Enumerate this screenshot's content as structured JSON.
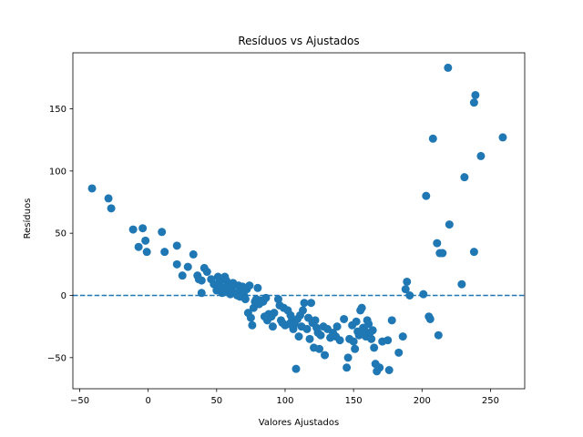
{
  "chart_data": {
    "type": "scatter",
    "title": "Resíduos vs Ajustados",
    "xlabel": "Valores Ajustados",
    "ylabel": "Resíduos",
    "xlim": [
      -55,
      275
    ],
    "ylim": [
      -75,
      195
    ],
    "xticks": [
      -50,
      0,
      50,
      100,
      150,
      200,
      250
    ],
    "yticks": [
      -50,
      0,
      50,
      100,
      150
    ],
    "xtick_labels": [
      "−50",
      "0",
      "50",
      "100",
      "150",
      "200",
      "250"
    ],
    "ytick_labels": [
      "−50",
      "0",
      "50",
      "100",
      "150"
    ],
    "grid": false,
    "point_color": "#1f77b4",
    "reference_line": {
      "y": 0,
      "style": "dashed",
      "color": "#1f77b4"
    },
    "points": [
      {
        "x": -41,
        "y": 86
      },
      {
        "x": -29,
        "y": 78
      },
      {
        "x": -27,
        "y": 70
      },
      {
        "x": -11,
        "y": 53
      },
      {
        "x": -7,
        "y": 39
      },
      {
        "x": -4,
        "y": 54
      },
      {
        "x": -2,
        "y": 44
      },
      {
        "x": -1,
        "y": 35
      },
      {
        "x": 10,
        "y": 51
      },
      {
        "x": 12,
        "y": 35
      },
      {
        "x": 21,
        "y": 40
      },
      {
        "x": 21,
        "y": 25
      },
      {
        "x": 25,
        "y": 16
      },
      {
        "x": 29,
        "y": 23
      },
      {
        "x": 33,
        "y": 33
      },
      {
        "x": 36,
        "y": 16
      },
      {
        "x": 37,
        "y": 13
      },
      {
        "x": 39,
        "y": 12
      },
      {
        "x": 39,
        "y": 2
      },
      {
        "x": 41,
        "y": 22
      },
      {
        "x": 43,
        "y": 19
      },
      {
        "x": 46,
        "y": 13
      },
      {
        "x": 48,
        "y": 9
      },
      {
        "x": 50,
        "y": 4
      },
      {
        "x": 51,
        "y": 15
      },
      {
        "x": 52,
        "y": 11
      },
      {
        "x": 53,
        "y": 7
      },
      {
        "x": 54,
        "y": 2
      },
      {
        "x": 55,
        "y": 5
      },
      {
        "x": 56,
        "y": 15
      },
      {
        "x": 57,
        "y": 12
      },
      {
        "x": 58,
        "y": 8
      },
      {
        "x": 59,
        "y": 3
      },
      {
        "x": 60,
        "y": 1
      },
      {
        "x": 61,
        "y": 6
      },
      {
        "x": 62,
        "y": 10
      },
      {
        "x": 64,
        "y": 2
      },
      {
        "x": 65,
        "y": 0
      },
      {
        "x": 66,
        "y": 8
      },
      {
        "x": 67,
        "y": -1
      },
      {
        "x": 68,
        "y": 4
      },
      {
        "x": 69,
        "y": 7
      },
      {
        "x": 70,
        "y": 0
      },
      {
        "x": 71,
        "y": -3
      },
      {
        "x": 72,
        "y": 5
      },
      {
        "x": 73,
        "y": -14
      },
      {
        "x": 74,
        "y": 8
      },
      {
        "x": 75,
        "y": -18
      },
      {
        "x": 76,
        "y": -24
      },
      {
        "x": 77,
        "y": -10
      },
      {
        "x": 78,
        "y": -5
      },
      {
        "x": 79,
        "y": -3
      },
      {
        "x": 80,
        "y": 6
      },
      {
        "x": 81,
        "y": -7
      },
      {
        "x": 82,
        "y": -4
      },
      {
        "x": 84,
        "y": -5
      },
      {
        "x": 85,
        "y": -17
      },
      {
        "x": 86,
        "y": -2
      },
      {
        "x": 87,
        "y": -20
      },
      {
        "x": 88,
        "y": -15
      },
      {
        "x": 90,
        "y": -17
      },
      {
        "x": 91,
        "y": -25
      },
      {
        "x": 92,
        "y": -14
      },
      {
        "x": 95,
        "y": -3
      },
      {
        "x": 96,
        "y": -8
      },
      {
        "x": 97,
        "y": -20
      },
      {
        "x": 98,
        "y": -22
      },
      {
        "x": 99,
        "y": -10
      },
      {
        "x": 100,
        "y": -24
      },
      {
        "x": 102,
        "y": -12
      },
      {
        "x": 103,
        "y": -23
      },
      {
        "x": 104,
        "y": -16
      },
      {
        "x": 105,
        "y": -20
      },
      {
        "x": 106,
        "y": -27
      },
      {
        "x": 107,
        "y": -23
      },
      {
        "x": 108,
        "y": -59
      },
      {
        "x": 109,
        "y": -19
      },
      {
        "x": 110,
        "y": -33
      },
      {
        "x": 111,
        "y": -16
      },
      {
        "x": 112,
        "y": -25
      },
      {
        "x": 113,
        "y": -12
      },
      {
        "x": 114,
        "y": -6
      },
      {
        "x": 116,
        "y": -27
      },
      {
        "x": 117,
        "y": -18
      },
      {
        "x": 118,
        "y": -35
      },
      {
        "x": 119,
        "y": -6
      },
      {
        "x": 120,
        "y": -22
      },
      {
        "x": 121,
        "y": -42
      },
      {
        "x": 122,
        "y": -20
      },
      {
        "x": 123,
        "y": -26
      },
      {
        "x": 124,
        "y": -30
      },
      {
        "x": 125,
        "y": -43
      },
      {
        "x": 126,
        "y": -32
      },
      {
        "x": 128,
        "y": -25
      },
      {
        "x": 129,
        "y": -48
      },
      {
        "x": 131,
        "y": -27
      },
      {
        "x": 133,
        "y": -34
      },
      {
        "x": 135,
        "y": -30
      },
      {
        "x": 137,
        "y": -33
      },
      {
        "x": 138,
        "y": -25
      },
      {
        "x": 140,
        "y": -36
      },
      {
        "x": 143,
        "y": -19
      },
      {
        "x": 145,
        "y": -58
      },
      {
        "x": 146,
        "y": -50
      },
      {
        "x": 147,
        "y": -35
      },
      {
        "x": 149,
        "y": -24
      },
      {
        "x": 150,
        "y": -37
      },
      {
        "x": 151,
        "y": -43
      },
      {
        "x": 152,
        "y": -21
      },
      {
        "x": 153,
        "y": -29
      },
      {
        "x": 154,
        "y": -32
      },
      {
        "x": 155,
        "y": -12
      },
      {
        "x": 156,
        "y": -10
      },
      {
        "x": 157,
        "y": -26
      },
      {
        "x": 158,
        "y": -28
      },
      {
        "x": 159,
        "y": -33
      },
      {
        "x": 160,
        "y": -20
      },
      {
        "x": 161,
        "y": -23
      },
      {
        "x": 162,
        "y": -30
      },
      {
        "x": 163,
        "y": -35
      },
      {
        "x": 164,
        "y": -28
      },
      {
        "x": 165,
        "y": -42
      },
      {
        "x": 166,
        "y": -55
      },
      {
        "x": 167,
        "y": -61
      },
      {
        "x": 169,
        "y": -58
      },
      {
        "x": 171,
        "y": -37
      },
      {
        "x": 175,
        "y": -36
      },
      {
        "x": 176,
        "y": -60
      },
      {
        "x": 178,
        "y": -20
      },
      {
        "x": 183,
        "y": -46
      },
      {
        "x": 186,
        "y": -33
      },
      {
        "x": 188,
        "y": 5
      },
      {
        "x": 189,
        "y": 11
      },
      {
        "x": 191,
        "y": 0
      },
      {
        "x": 201,
        "y": 1
      },
      {
        "x": 203,
        "y": 80
      },
      {
        "x": 205,
        "y": -17
      },
      {
        "x": 206,
        "y": -19
      },
      {
        "x": 208,
        "y": 126
      },
      {
        "x": 211,
        "y": 42
      },
      {
        "x": 212,
        "y": -32
      },
      {
        "x": 213,
        "y": 34
      },
      {
        "x": 215,
        "y": 34
      },
      {
        "x": 219,
        "y": 183
      },
      {
        "x": 220,
        "y": 57
      },
      {
        "x": 229,
        "y": 9
      },
      {
        "x": 231,
        "y": 95
      },
      {
        "x": 238,
        "y": 35
      },
      {
        "x": 238,
        "y": 155
      },
      {
        "x": 239,
        "y": 161
      },
      {
        "x": 243,
        "y": 112
      },
      {
        "x": 259,
        "y": 127
      }
    ]
  }
}
